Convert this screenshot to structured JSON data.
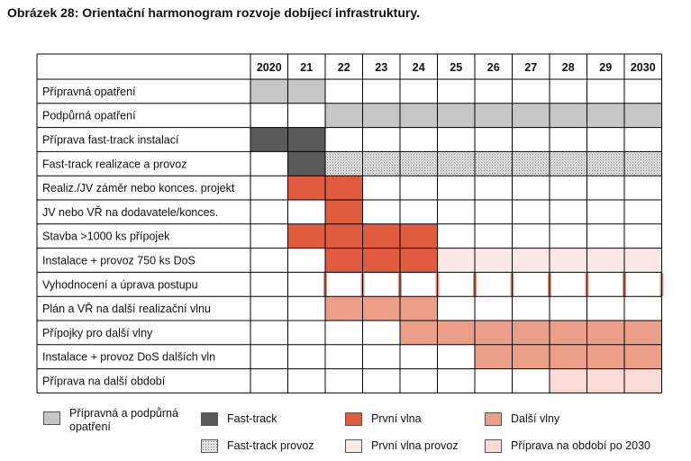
{
  "caption": "Obrázek 28: Orientační harmonogram rozvoje dobíjecí infrastruktury.",
  "years": [
    "2020",
    "21",
    "22",
    "23",
    "24",
    "25",
    "26",
    "27",
    "28",
    "29",
    "2030"
  ],
  "colors": {
    "prep": "#c6c6c6",
    "fasttrack": "#595959",
    "fastprov": "#d6d6d6",
    "prvni": "#e15b3e",
    "dalsi": "#eb9f89",
    "prvniprov": "#fbe9e7",
    "obdobi": "#fbdcd6",
    "vyhod": "#e8917b"
  },
  "rows": [
    {
      "label": "Přípravná opatření",
      "cells": [
        "prep",
        "prep",
        "",
        "",
        "",
        "",
        "",
        "",
        "",
        "",
        ""
      ]
    },
    {
      "label": "Podpůrná opatření",
      "cells": [
        "",
        "",
        "prep",
        "prep",
        "prep",
        "prep",
        "prep",
        "prep",
        "prep",
        "prep",
        "prep"
      ]
    },
    {
      "label": "Příprava fast-track instalací",
      "cells": [
        "fasttrack",
        "fasttrack",
        "",
        "",
        "",
        "",
        "",
        "",
        "",
        "",
        ""
      ]
    },
    {
      "label": "Fast-track realizace a  provoz",
      "cells": [
        "",
        "fasttrack",
        "fastprov",
        "fastprov",
        "fastprov",
        "fastprov",
        "fastprov",
        "fastprov",
        "fastprov",
        "fastprov",
        "fastprov"
      ]
    },
    {
      "label": "Realiz./JV záměr nebo konces. projekt",
      "cells": [
        "",
        "prvni",
        "prvni",
        "",
        "",
        "",
        "",
        "",
        "",
        "",
        ""
      ]
    },
    {
      "label": "JV nebo VŘ na dodavatele/konces.",
      "cells": [
        "",
        "",
        "prvni",
        "",
        "",
        "",
        "",
        "",
        "",
        "",
        ""
      ]
    },
    {
      "label": "Stavba >1000 ks přípojek",
      "cells": [
        "",
        "prvni",
        "prvni",
        "prvni",
        "prvni",
        "",
        "",
        "",
        "",
        "",
        ""
      ]
    },
    {
      "label": "Instalace + provoz 750 ks DoS",
      "cells": [
        "",
        "",
        "prvni",
        "prvni",
        "prvni",
        "prvniprov",
        "prvniprov",
        "prvniprov",
        "prvniprov",
        "prvniprov",
        "prvniprov"
      ]
    },
    {
      "label": "Vyhodnocení a úprava postupu",
      "cells": [
        "",
        "",
        "vyhod",
        "vyhod",
        "vyhod",
        "vyhod",
        "vyhod",
        "vyhod",
        "vyhod",
        "vyhod",
        "vyhod"
      ]
    },
    {
      "label": "Plán a VŘ na další realizační vlnu",
      "cells": [
        "",
        "",
        "dalsi",
        "dalsi",
        "dalsi",
        "",
        "",
        "",
        "",
        "",
        ""
      ]
    },
    {
      "label": "Přípojky pro další vlny",
      "cells": [
        "",
        "",
        "",
        "",
        "dalsi",
        "dalsi",
        "dalsi",
        "dalsi",
        "dalsi",
        "dalsi",
        "dalsi"
      ]
    },
    {
      "label": "Instalace + provoz DoS dalších vln",
      "cells": [
        "",
        "",
        "",
        "",
        "",
        "",
        "dalsi",
        "dalsi",
        "dalsi",
        "dalsi",
        "dalsi"
      ]
    },
    {
      "label": "Příprava na další období",
      "cells": [
        "",
        "",
        "",
        "",
        "",
        "",
        "",
        "",
        "obdobi",
        "obdobi",
        "obdobi"
      ]
    }
  ],
  "legend": [
    {
      "key": "prep",
      "label": "Přípravná a podpůrná opatření"
    },
    {
      "key": "fasttrack",
      "label": "Fast-track"
    },
    {
      "key": "prvni",
      "label": "První vlna"
    },
    {
      "key": "dalsi",
      "label": "Další vlny"
    },
    {
      "key": "fastprov",
      "label": "Fast-track provoz"
    },
    {
      "key": "prvniprov",
      "label": "První vlna provoz"
    },
    {
      "key": "obdobi",
      "label": "Příprava na období po 2030"
    }
  ]
}
